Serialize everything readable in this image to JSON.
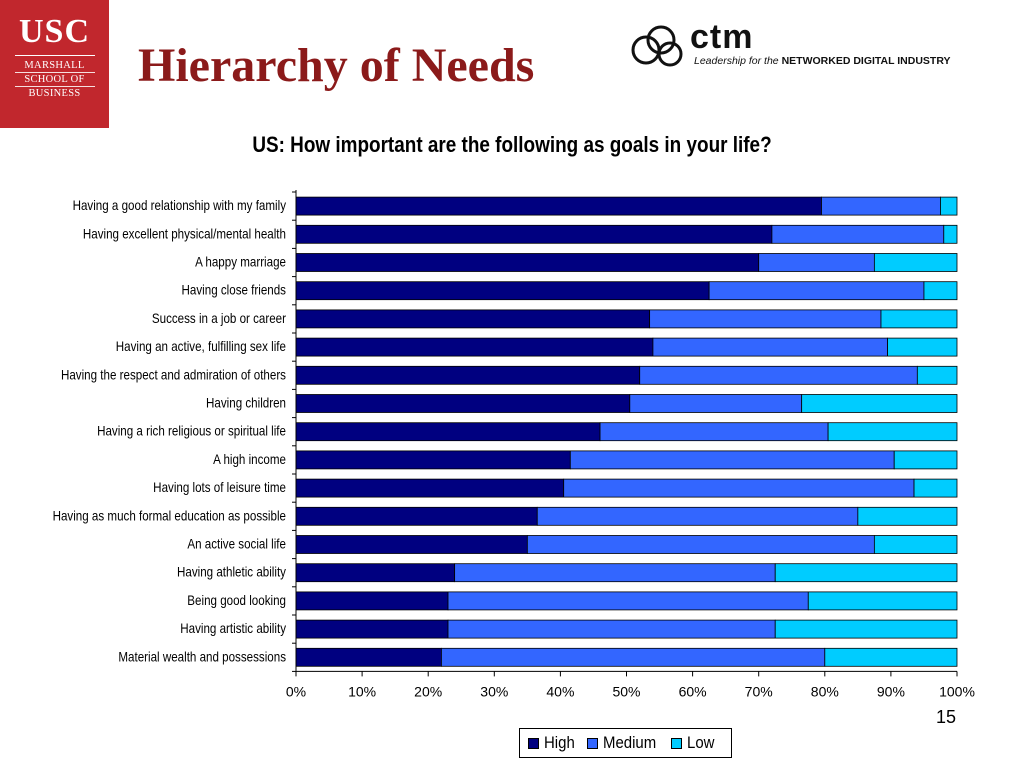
{
  "slide": {
    "title": "Hierarchy of Needs",
    "page_number": "15",
    "usc_logo": {
      "main": "USC",
      "lines": [
        "MARSHALL",
        "SCHOOL OF",
        "BUSINESS"
      ]
    },
    "ctm_logo": {
      "name": "ctm",
      "tagline_italic": "Leadership for the",
      "tagline_bold": "NETWORKED DIGITAL INDUSTRY"
    }
  },
  "chart_data": {
    "type": "bar",
    "orientation": "horizontal",
    "stacked": "percent",
    "title": "US: How important are the following as goals in your life?",
    "categories": [
      "Having a good relationship with my family",
      "Having excellent physical/mental health",
      "A happy marriage",
      "Having close friends",
      "Success in a job or career",
      "Having an active, fulfilling sex life",
      "Having the respect and admiration of others",
      "Having children",
      "Having a rich religious or spiritual life",
      "A high income",
      "Having lots of leisure time",
      "Having as much formal education as possible",
      "An active social life",
      "Having athletic ability",
      "Being good looking",
      "Having artistic ability",
      "Material wealth and possessions"
    ],
    "series": [
      {
        "name": "High",
        "color": "#000080",
        "values": [
          79.5,
          72,
          70,
          62.5,
          53.5,
          54,
          52,
          50.5,
          46,
          41.5,
          40.5,
          36.5,
          35,
          24,
          23,
          23,
          22
        ]
      },
      {
        "name": "Medium",
        "color": "#3366ff",
        "values": [
          18,
          26,
          17.5,
          32.5,
          35,
          35.5,
          42,
          26,
          34.5,
          49,
          53,
          48.5,
          52.5,
          48.5,
          54.5,
          49.5,
          58
        ]
      },
      {
        "name": "Low",
        "color": "#00ccff",
        "values": [
          2.5,
          2,
          12.5,
          5,
          11.5,
          10.5,
          6,
          23.5,
          19.5,
          9.5,
          6.5,
          15,
          12.5,
          27.5,
          22.5,
          27.5,
          20
        ]
      }
    ],
    "x_ticks": [
      "0%",
      "10%",
      "20%",
      "30%",
      "40%",
      "50%",
      "60%",
      "70%",
      "80%",
      "90%",
      "100%"
    ],
    "xlim": [
      0,
      100
    ],
    "grid": false,
    "legend_position": "bottom"
  }
}
